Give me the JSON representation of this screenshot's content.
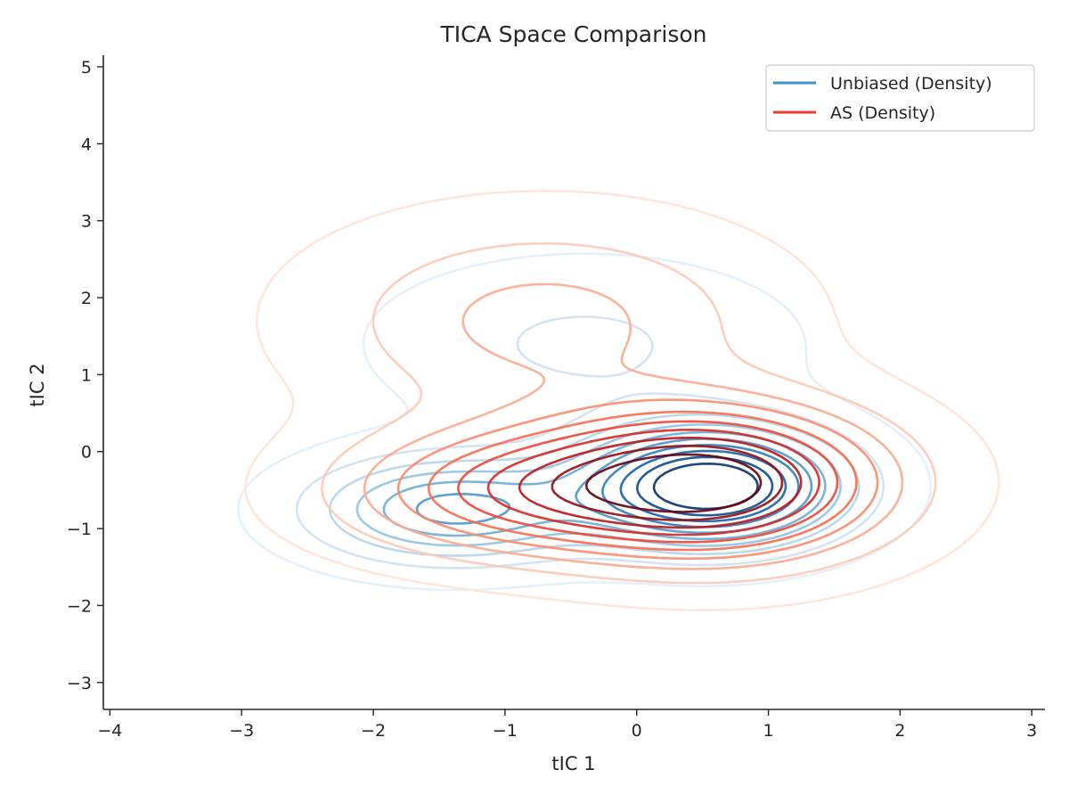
{
  "chart_data": {
    "type": "contour",
    "title": "TICA Space Comparison",
    "xlabel": "tIC 1",
    "ylabel": "tIC 2",
    "xlim": [
      -4.05,
      3.1
    ],
    "ylim": [
      -3.35,
      5.15
    ],
    "xticks": [
      -4,
      -3,
      -2,
      -1,
      0,
      1,
      2,
      3
    ],
    "yticks": [
      -3,
      -2,
      -1,
      0,
      1,
      2,
      3,
      4,
      5
    ],
    "xtick_labels": [
      "−4",
      "−3",
      "−2",
      "−1",
      "0",
      "1",
      "2",
      "3"
    ],
    "ytick_labels": [
      "−3",
      "−2",
      "−1",
      "0",
      "1",
      "2",
      "3",
      "4",
      "5"
    ],
    "grid": false,
    "legend_position": "top-right",
    "series": [
      {
        "name": "Unbiased (Density)",
        "color": "#4292c6",
        "colormap": "Blues",
        "components": [
          {
            "mean": [
              0.55,
              -0.45
            ],
            "sd": [
              0.65,
              0.5
            ],
            "weight": 0.55
          },
          {
            "mean": [
              -1.4,
              -0.75
            ],
            "sd": [
              0.7,
              0.45
            ],
            "weight": 0.28
          },
          {
            "mean": [
              -0.4,
              1.4
            ],
            "sd": [
              1.0,
              0.7
            ],
            "weight": 0.17
          }
        ],
        "levels": 10
      },
      {
        "name": "AS (Density)",
        "color": "#ef3b2c",
        "colormap": "Reds",
        "components": [
          {
            "mean": [
              0.6,
              -0.4
            ],
            "sd": [
              0.85,
              0.65
            ],
            "weight": 0.5
          },
          {
            "mean": [
              -0.9,
              -0.5
            ],
            "sd": [
              0.9,
              0.55
            ],
            "weight": 0.25
          },
          {
            "mean": [
              -0.7,
              1.7
            ],
            "sd": [
              1.1,
              0.85
            ],
            "weight": 0.25
          }
        ],
        "levels": 10
      }
    ]
  }
}
